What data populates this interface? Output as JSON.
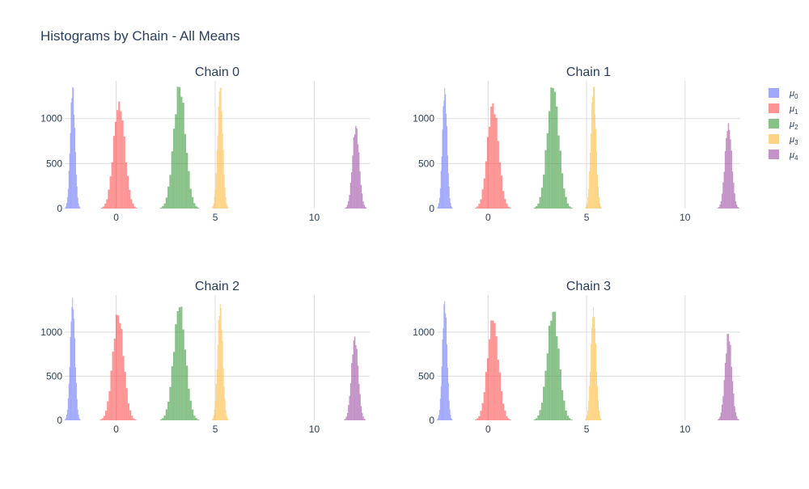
{
  "chart_data": {
    "type": "bar",
    "title": "Histograms by Chain - All Means",
    "legend": {
      "placement": "top-right",
      "entries": [
        {
          "symbol": "μ",
          "sub": "0",
          "color": "#636efa"
        },
        {
          "symbol": "μ",
          "sub": "1",
          "color": "#ff4d4d"
        },
        {
          "symbol": "μ",
          "sub": "2",
          "color": "#3a9a3a"
        },
        {
          "symbol": "μ",
          "sub": "3",
          "color": "#ffb732"
        },
        {
          "symbol": "μ",
          "sub": "4",
          "color": "#9b4aa0"
        }
      ]
    },
    "opacity": 0.6,
    "panels": [
      {
        "title": "Chain 0",
        "xlim": [
          -2.6,
          12.8
        ],
        "ylim": [
          0,
          1420
        ],
        "xticks": [
          0,
          5,
          10
        ],
        "yticks": [
          0,
          500,
          1000
        ],
        "series": [
          {
            "name": "μ0",
            "center": -2.2,
            "sigma": 0.12,
            "peak": 1350
          },
          {
            "name": "μ1",
            "center": 0.15,
            "sigma": 0.28,
            "peak": 1190
          },
          {
            "name": "μ2",
            "center": 3.2,
            "sigma": 0.3,
            "peak": 1350
          },
          {
            "name": "μ3",
            "center": 5.25,
            "sigma": 0.13,
            "peak": 1340
          },
          {
            "name": "μ4",
            "center": 12.1,
            "sigma": 0.17,
            "peak": 920
          }
        ]
      },
      {
        "title": "Chain 1",
        "xlim": [
          -2.6,
          12.8
        ],
        "ylim": [
          0,
          1420
        ],
        "xticks": [
          0,
          5,
          10
        ],
        "yticks": [
          0,
          500,
          1000
        ],
        "series": [
          {
            "name": "μ0",
            "center": -2.2,
            "sigma": 0.12,
            "peak": 1340
          },
          {
            "name": "μ1",
            "center": 0.25,
            "sigma": 0.28,
            "peak": 1170
          },
          {
            "name": "μ2",
            "center": 3.3,
            "sigma": 0.3,
            "peak": 1340
          },
          {
            "name": "μ3",
            "center": 5.35,
            "sigma": 0.13,
            "peak": 1350
          },
          {
            "name": "μ4",
            "center": 12.2,
            "sigma": 0.17,
            "peak": 950
          }
        ]
      },
      {
        "title": "Chain 2",
        "xlim": [
          -2.6,
          12.8
        ],
        "ylim": [
          0,
          1420
        ],
        "xticks": [
          0,
          5,
          10
        ],
        "yticks": [
          0,
          500,
          1000
        ],
        "series": [
          {
            "name": "μ0",
            "center": -2.2,
            "sigma": 0.12,
            "peak": 1390
          },
          {
            "name": "μ1",
            "center": 0.1,
            "sigma": 0.28,
            "peak": 1190
          },
          {
            "name": "μ2",
            "center": 3.2,
            "sigma": 0.3,
            "peak": 1280
          },
          {
            "name": "μ3",
            "center": 5.25,
            "sigma": 0.13,
            "peak": 1320
          },
          {
            "name": "μ4",
            "center": 12.05,
            "sigma": 0.17,
            "peak": 950
          }
        ]
      },
      {
        "title": "Chain 3",
        "xlim": [
          -2.6,
          12.8
        ],
        "ylim": [
          0,
          1420
        ],
        "xticks": [
          0,
          5,
          10
        ],
        "yticks": [
          0,
          500,
          1000
        ],
        "series": [
          {
            "name": "μ0",
            "center": -2.2,
            "sigma": 0.12,
            "peak": 1350
          },
          {
            "name": "μ1",
            "center": 0.25,
            "sigma": 0.28,
            "peak": 1130
          },
          {
            "name": "μ2",
            "center": 3.3,
            "sigma": 0.3,
            "peak": 1230
          },
          {
            "name": "μ3",
            "center": 5.35,
            "sigma": 0.13,
            "peak": 1280
          },
          {
            "name": "μ4",
            "center": 12.2,
            "sigma": 0.17,
            "peak": 980
          }
        ]
      }
    ]
  }
}
